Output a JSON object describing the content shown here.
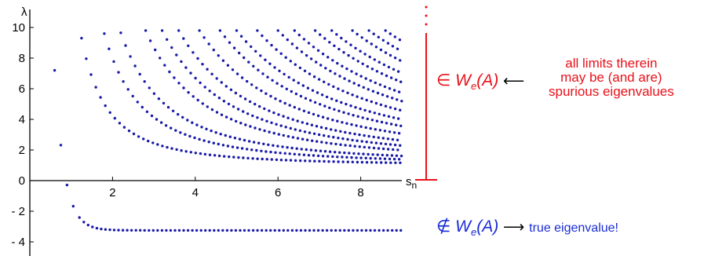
{
  "chart_data": {
    "type": "scatter",
    "xlabel": "s",
    "xlabel_sub": "n",
    "ylabel": "λ",
    "xlim": [
      0,
      9
    ],
    "ylim": [
      -5,
      10.2
    ],
    "xticks": [
      2,
      4,
      6,
      8
    ],
    "yticks": [
      {
        "value": 10,
        "label": "10"
      },
      {
        "value": 8,
        "label": "8"
      },
      {
        "value": 6,
        "label": "6"
      },
      {
        "value": 4,
        "label": "4"
      },
      {
        "value": 2,
        "label": "2"
      },
      {
        "value": 0,
        "label": "0"
      },
      {
        "value": -2,
        "label": "- 2"
      },
      {
        "value": -4,
        "label": "- 4"
      }
    ],
    "point_color": "#1a1aa8",
    "series": [
      {
        "type": "descending",
        "x_start": 0.6,
        "y_start": 7.2,
        "y_limit": -3.25,
        "rate": 4.2,
        "x_start_step": 0.15
      },
      {
        "type": "hyperbola",
        "x_start": 1.25,
        "y_start": 9.3,
        "y_limit": 1.0
      },
      {
        "type": "hyperbola",
        "x_start": 1.8,
        "y_start": 9.6,
        "y_limit": 1.05
      },
      {
        "type": "hyperbola",
        "x_start": 2.2,
        "y_start": 9.65,
        "y_limit": 1.1
      },
      {
        "type": "hyperbola",
        "x_start": 2.8,
        "y_start": 9.8,
        "y_limit": 1.15
      },
      {
        "type": "hyperbola",
        "x_start": 3.2,
        "y_start": 9.8,
        "y_limit": 1.2
      },
      {
        "type": "hyperbola",
        "x_start": 3.6,
        "y_start": 9.8,
        "y_limit": 1.25
      },
      {
        "type": "hyperbola",
        "x_start": 4.1,
        "y_start": 9.8,
        "y_limit": 1.3
      },
      {
        "type": "hyperbola",
        "x_start": 4.6,
        "y_start": 9.8,
        "y_limit": 1.35
      },
      {
        "type": "hyperbola",
        "x_start": 5.0,
        "y_start": 9.8,
        "y_limit": 1.4
      },
      {
        "type": "hyperbola",
        "x_start": 5.5,
        "y_start": 9.8,
        "y_limit": 1.45
      },
      {
        "type": "hyperbola",
        "x_start": 6.0,
        "y_start": 9.8,
        "y_limit": 1.5
      },
      {
        "type": "hyperbola",
        "x_start": 6.4,
        "y_start": 9.8,
        "y_limit": 1.55
      },
      {
        "type": "hyperbola",
        "x_start": 6.9,
        "y_start": 9.8,
        "y_limit": 1.6
      },
      {
        "type": "hyperbola",
        "x_start": 7.3,
        "y_start": 9.8,
        "y_limit": 1.65
      },
      {
        "type": "hyperbola",
        "x_start": 7.8,
        "y_start": 9.8,
        "y_limit": 1.7
      },
      {
        "type": "hyperbola",
        "x_start": 8.2,
        "y_start": 9.8,
        "y_limit": 1.75
      },
      {
        "type": "hyperbola",
        "x_start": 8.6,
        "y_start": 9.8,
        "y_limit": 1.8
      }
    ]
  },
  "annotations": {
    "in_we": {
      "symbol": "∈",
      "letter": "W",
      "sub": "e",
      "arg": "(A)",
      "arrow": "⟵"
    },
    "note_spurious": [
      "all limits therein",
      "may be (and are)",
      "spurious eigenvalues"
    ],
    "notin_we": {
      "symbol": "∉",
      "letter": "W",
      "sub": "e",
      "arg": "(A)",
      "arrow": "⟶"
    },
    "note_true": "true eigenvalue!",
    "red": "#e8111a",
    "blue": "#1a2cd6"
  }
}
